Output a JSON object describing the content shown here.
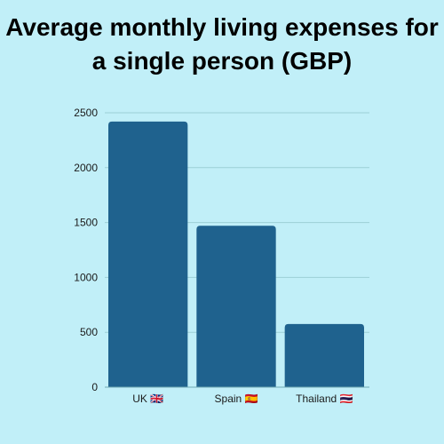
{
  "title_line1": "Average monthly living expenses for",
  "title_line2": "a single person (GBP)",
  "chart_data": {
    "type": "bar",
    "title": "Average monthly living expenses for a single person (GBP)",
    "categories": [
      "UK 🇬🇧",
      "Spain 🇪🇸",
      "Thailand 🇹🇭"
    ],
    "values": [
      2420,
      1470,
      575
    ],
    "ylim": [
      0,
      2500
    ],
    "yticks": [
      0,
      500,
      1000,
      1500,
      2000,
      2500
    ],
    "grid": true,
    "xlabel": "",
    "ylabel": "",
    "bar_color": "#1f628e",
    "grid_color": "#9ccfd6",
    "axis_color": "#6fa9b3"
  }
}
